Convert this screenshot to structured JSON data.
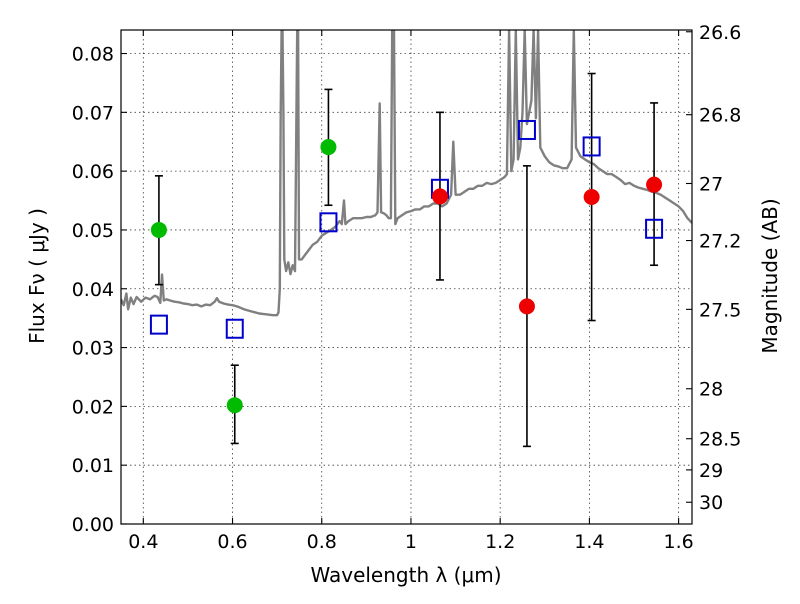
{
  "chart_data": {
    "type": "scatter",
    "title": "",
    "xlabel": "Wavelength  λ (μm)",
    "ylabel": "Flux  Fν  ( μJy )",
    "y2label": "Magnitude (AB)",
    "xlim": [
      0.35,
      1.63
    ],
    "ylim": [
      0.0,
      0.084
    ],
    "grid": true,
    "x_ticks": [
      0.4,
      0.6,
      0.8,
      1.0,
      1.2,
      1.4,
      1.6
    ],
    "x_tick_labels": [
      "0.4",
      "0.6",
      "0.8",
      "1",
      "1.2",
      "1.4",
      "1.6"
    ],
    "y_ticks": [
      0.0,
      0.01,
      0.02,
      0.03,
      0.04,
      0.05,
      0.06,
      0.07,
      0.08
    ],
    "y_tick_labels": [
      "0.00",
      "0.01",
      "0.02",
      "0.03",
      "0.04",
      "0.05",
      "0.06",
      "0.07",
      "0.08"
    ],
    "mag_ticks": [
      {
        "label": "26.6",
        "flux": 0.0837
      },
      {
        "label": "26.8",
        "flux": 0.0696
      },
      {
        "label": "27",
        "flux": 0.0579
      },
      {
        "label": "27.2",
        "flux": 0.0482
      },
      {
        "label": "27.5",
        "flux": 0.0365
      },
      {
        "label": "28",
        "flux": 0.023
      },
      {
        "label": "28.5",
        "flux": 0.0145
      },
      {
        "label": "29",
        "flux": 0.0092
      },
      {
        "label": "30",
        "flux": 0.0037
      }
    ],
    "series": [
      {
        "marker": "circle",
        "color": "#00bb00",
        "points": [
          {
            "x": 0.435,
            "y": 0.05,
            "yerr_lo": 0.0407,
            "yerr_hi": 0.0592
          },
          {
            "x": 0.605,
            "y": 0.0202,
            "yerr_lo": 0.0137,
            "yerr_hi": 0.027
          },
          {
            "x": 0.815,
            "y": 0.0641,
            "yerr_lo": 0.0542,
            "yerr_hi": 0.0739
          }
        ]
      },
      {
        "marker": "circle",
        "color": "#ee0000",
        "points": [
          {
            "x": 1.065,
            "y": 0.0557,
            "yerr_lo": 0.0415,
            "yerr_hi": 0.07
          },
          {
            "x": 1.26,
            "y": 0.037,
            "yerr_lo": 0.0132,
            "yerr_hi": 0.0609
          },
          {
            "x": 1.405,
            "y": 0.0556,
            "yerr_lo": 0.0346,
            "yerr_hi": 0.0766
          },
          {
            "x": 1.545,
            "y": 0.0577,
            "yerr_lo": 0.044,
            "yerr_hi": 0.0716
          }
        ]
      },
      {
        "marker": "open-square",
        "color": "#0000cc",
        "points": [
          {
            "x": 0.435,
            "y": 0.0339
          },
          {
            "x": 0.605,
            "y": 0.0332
          },
          {
            "x": 0.815,
            "y": 0.0513
          },
          {
            "x": 1.065,
            "y": 0.057
          },
          {
            "x": 1.26,
            "y": 0.067
          },
          {
            "x": 1.405,
            "y": 0.0642
          },
          {
            "x": 1.545,
            "y": 0.0502
          }
        ]
      },
      {
        "type": "line",
        "color": "#808080",
        "points": [
          [
            0.35,
            0.0382
          ],
          [
            0.356,
            0.0372
          ],
          [
            0.362,
            0.0392
          ],
          [
            0.366,
            0.0365
          ],
          [
            0.372,
            0.0385
          ],
          [
            0.378,
            0.0374
          ],
          [
            0.385,
            0.0386
          ],
          [
            0.395,
            0.0378
          ],
          [
            0.405,
            0.0385
          ],
          [
            0.415,
            0.0382
          ],
          [
            0.425,
            0.0388
          ],
          [
            0.432,
            0.0386
          ],
          [
            0.438,
            0.0376
          ],
          [
            0.442,
            0.0424
          ],
          [
            0.446,
            0.038
          ],
          [
            0.452,
            0.0382
          ],
          [
            0.46,
            0.038
          ],
          [
            0.47,
            0.0378
          ],
          [
            0.48,
            0.0377
          ],
          [
            0.49,
            0.0375
          ],
          [
            0.5,
            0.0374
          ],
          [
            0.51,
            0.0372
          ],
          [
            0.52,
            0.0373
          ],
          [
            0.53,
            0.037
          ],
          [
            0.54,
            0.0373
          ],
          [
            0.55,
            0.0372
          ],
          [
            0.56,
            0.0378
          ],
          [
            0.565,
            0.0384
          ],
          [
            0.57,
            0.0378
          ],
          [
            0.58,
            0.0375
          ],
          [
            0.59,
            0.0373
          ],
          [
            0.6,
            0.0372
          ],
          [
            0.61,
            0.037
          ],
          [
            0.62,
            0.0367
          ],
          [
            0.63,
            0.0364
          ],
          [
            0.64,
            0.0362
          ],
          [
            0.65,
            0.036
          ],
          [
            0.66,
            0.0358
          ],
          [
            0.67,
            0.0357
          ],
          [
            0.68,
            0.0356
          ],
          [
            0.69,
            0.0355
          ],
          [
            0.7,
            0.0355
          ],
          [
            0.703,
            0.036
          ],
          [
            0.706,
            0.04
          ],
          [
            0.708,
            0.07
          ],
          [
            0.71,
            0.084
          ],
          [
            0.712,
            0.084
          ],
          [
            0.714,
            0.07
          ],
          [
            0.716,
            0.045
          ],
          [
            0.72,
            0.043
          ],
          [
            0.725,
            0.0445
          ],
          [
            0.73,
            0.0425
          ],
          [
            0.735,
            0.044
          ],
          [
            0.74,
            0.043
          ],
          [
            0.745,
            0.084
          ],
          [
            0.747,
            0.084
          ],
          [
            0.749,
            0.045
          ],
          [
            0.755,
            0.045
          ],
          [
            0.76,
            0.0455
          ],
          [
            0.77,
            0.0465
          ],
          [
            0.78,
            0.0475
          ],
          [
            0.79,
            0.048
          ],
          [
            0.8,
            0.049
          ],
          [
            0.81,
            0.0495
          ],
          [
            0.82,
            0.05
          ],
          [
            0.83,
            0.0505
          ],
          [
            0.84,
            0.0515
          ],
          [
            0.845,
            0.051
          ],
          [
            0.85,
            0.055
          ],
          [
            0.853,
            0.051
          ],
          [
            0.86,
            0.0515
          ],
          [
            0.87,
            0.052
          ],
          [
            0.88,
            0.052
          ],
          [
            0.89,
            0.052
          ],
          [
            0.9,
            0.0522
          ],
          [
            0.91,
            0.0522
          ],
          [
            0.92,
            0.0525
          ],
          [
            0.925,
            0.053
          ],
          [
            0.93,
            0.0715
          ],
          [
            0.933,
            0.053
          ],
          [
            0.94,
            0.0528
          ],
          [
            0.945,
            0.0525
          ],
          [
            0.95,
            0.052
          ],
          [
            0.955,
            0.052
          ],
          [
            0.958,
            0.084
          ],
          [
            0.962,
            0.084
          ],
          [
            0.965,
            0.051
          ],
          [
            0.97,
            0.052
          ],
          [
            0.98,
            0.0525
          ],
          [
            0.99,
            0.053
          ],
          [
            1.0,
            0.0532
          ],
          [
            1.01,
            0.0535
          ],
          [
            1.02,
            0.0535
          ],
          [
            1.03,
            0.054
          ],
          [
            1.04,
            0.054
          ],
          [
            1.05,
            0.0545
          ],
          [
            1.06,
            0.0545
          ],
          [
            1.07,
            0.054
          ],
          [
            1.08,
            0.0545
          ],
          [
            1.09,
            0.056
          ],
          [
            1.095,
            0.065
          ],
          [
            1.1,
            0.056
          ],
          [
            1.11,
            0.056
          ],
          [
            1.12,
            0.0565
          ],
          [
            1.13,
            0.057
          ],
          [
            1.14,
            0.057
          ],
          [
            1.15,
            0.0575
          ],
          [
            1.16,
            0.0575
          ],
          [
            1.17,
            0.058
          ],
          [
            1.18,
            0.0578
          ],
          [
            1.19,
            0.058
          ],
          [
            1.2,
            0.0585
          ],
          [
            1.21,
            0.059
          ],
          [
            1.215,
            0.0595
          ],
          [
            1.22,
            0.084
          ],
          [
            1.225,
            0.06
          ],
          [
            1.23,
            0.062
          ],
          [
            1.235,
            0.084
          ],
          [
            1.24,
            0.062
          ],
          [
            1.245,
            0.064
          ],
          [
            1.25,
            0.07
          ],
          [
            1.255,
            0.084
          ],
          [
            1.26,
            0.068
          ],
          [
            1.265,
            0.07
          ],
          [
            1.27,
            0.072
          ],
          [
            1.275,
            0.084
          ],
          [
            1.28,
            0.069
          ],
          [
            1.285,
            0.084
          ],
          [
            1.29,
            0.064
          ],
          [
            1.3,
            0.0625
          ],
          [
            1.31,
            0.0615
          ],
          [
            1.32,
            0.061
          ],
          [
            1.33,
            0.0608
          ],
          [
            1.34,
            0.0605
          ],
          [
            1.35,
            0.0605
          ],
          [
            1.36,
            0.062
          ],
          [
            1.365,
            0.084
          ],
          [
            1.37,
            0.064
          ],
          [
            1.38,
            0.0625
          ],
          [
            1.39,
            0.062
          ],
          [
            1.4,
            0.0615
          ],
          [
            1.41,
            0.0612
          ],
          [
            1.42,
            0.0605
          ],
          [
            1.43,
            0.06
          ],
          [
            1.44,
            0.0595
          ],
          [
            1.45,
            0.0595
          ],
          [
            1.46,
            0.059
          ],
          [
            1.47,
            0.0585
          ],
          [
            1.48,
            0.0578
          ],
          [
            1.49,
            0.058
          ],
          [
            1.5,
            0.0575
          ],
          [
            1.51,
            0.0572
          ],
          [
            1.52,
            0.057
          ],
          [
            1.53,
            0.0568
          ],
          [
            1.54,
            0.0565
          ],
          [
            1.55,
            0.0563
          ],
          [
            1.56,
            0.056
          ],
          [
            1.57,
            0.0555
          ],
          [
            1.58,
            0.055
          ],
          [
            1.59,
            0.0545
          ],
          [
            1.6,
            0.054
          ],
          [
            1.61,
            0.0532
          ],
          [
            1.62,
            0.052
          ],
          [
            1.63,
            0.0512
          ]
        ]
      }
    ]
  }
}
